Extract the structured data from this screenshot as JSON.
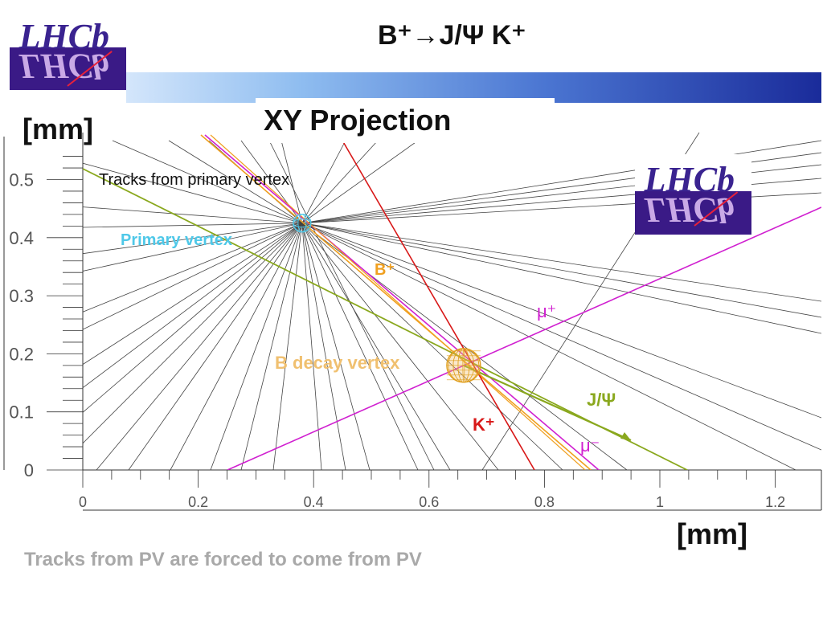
{
  "slide": {
    "title": "B⁺→J/Ψ K⁺",
    "projection_title": "XY Projection",
    "y_unit": "[mm]",
    "x_unit": "[mm]",
    "footnote": "Tracks from PV are forced to come from PV"
  },
  "logo": {
    "text": "LHCb"
  },
  "chart_data": {
    "type": "scatter",
    "x_ticks": [
      "0",
      "0.2",
      "0.4",
      "0.6",
      "0.8",
      "1",
      "1.2"
    ],
    "y_ticks": [
      "0",
      "0.1",
      "0.2",
      "0.3",
      "0.4",
      "0.5"
    ],
    "xlim": [
      0,
      1.26
    ],
    "ylim": [
      0,
      0.56
    ],
    "vertices": {
      "primary": {
        "x": 0.38,
        "y": 0.425
      },
      "b_decay": {
        "x": 0.66,
        "y": 0.18
      }
    },
    "annotations": {
      "tracks_from_pv": "Tracks from primary vertex",
      "primary_vertex": "Primary vertex",
      "b_decay_vertex": "B decay vertex",
      "b_plus": "B⁺",
      "mu_plus": "μ⁺",
      "mu_minus": "μ⁻",
      "jpsi": "J/Ψ",
      "k_plus": "K⁺"
    },
    "colors": {
      "tracks": "#444444",
      "b_plus": "#f0a020",
      "mu": "#d020d0",
      "jpsi": "#8aa81e",
      "k_plus": "#d81818",
      "primary_vertex": "#4fc8e8",
      "b_decay_vertex": "#e0a020"
    }
  }
}
